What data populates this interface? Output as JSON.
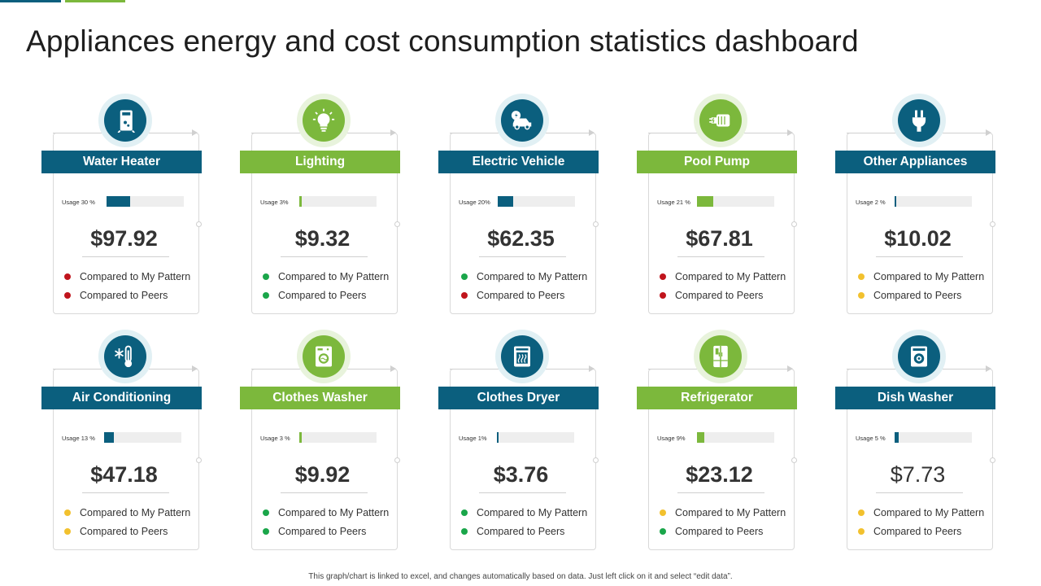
{
  "title": "Appliances energy and cost consumption statistics dashboard",
  "footer": "This graph/chart is linked to excel, and changes automatically based on data. Just left click on it and select “edit data”.",
  "colors": {
    "blue": "#0b5f7e",
    "green": "#7cb83c",
    "red": "#c0141c",
    "green_dot": "#1aa64a",
    "yellow": "#f2c12e"
  },
  "cards": [
    {
      "label": "Water Heater",
      "theme": "blue",
      "icon": "water-heater-icon",
      "usage_label": "Usage 30 %",
      "usage_pct": 30,
      "cost": "$97.92",
      "pattern_label": "Compared to My Pattern",
      "pattern_color": "#c0141c",
      "peers_label": "Compared to Peers",
      "peers_color": "#c0141c"
    },
    {
      "label": "Lighting",
      "theme": "green",
      "icon": "light-bulb-icon",
      "usage_label": "Usage 3%",
      "usage_pct": 3,
      "cost": "$9.32",
      "pattern_label": "Compared to My Pattern",
      "pattern_color": "#1aa64a",
      "peers_label": "Compared to Peers",
      "peers_color": "#1aa64a"
    },
    {
      "label": "Electric Vehicle",
      "theme": "blue",
      "icon": "electric-vehicle-icon",
      "usage_label": "Usage 20%",
      "usage_pct": 20,
      "cost": "$62.35",
      "pattern_label": "Compared to My Pattern",
      "pattern_color": "#1aa64a",
      "peers_label": "Compared to Peers",
      "peers_color": "#c0141c"
    },
    {
      "label": "Pool Pump",
      "theme": "green",
      "icon": "pool-pump-icon",
      "usage_label": "Usage 21 %",
      "usage_pct": 21,
      "cost": "$67.81",
      "pattern_label": "Compared to My Pattern",
      "pattern_color": "#c0141c",
      "peers_label": "Compared to Peers",
      "peers_color": "#c0141c"
    },
    {
      "label": "Other Appliances",
      "theme": "blue",
      "icon": "plug-icon",
      "usage_label": "Usage 2 %",
      "usage_pct": 2,
      "cost": "$10.02",
      "pattern_label": "Compared to My Pattern",
      "pattern_color": "#f2c12e",
      "peers_label": "Compared to Peers",
      "peers_color": "#f2c12e"
    },
    {
      "label": "Air Conditioning",
      "theme": "blue",
      "icon": "air-conditioning-icon",
      "usage_label": "Usage 13 %",
      "usage_pct": 13,
      "cost": "$47.18",
      "pattern_label": "Compared to My Pattern",
      "pattern_color": "#f2c12e",
      "peers_label": "Compared to Peers",
      "peers_color": "#f2c12e"
    },
    {
      "label": "Clothes Washer",
      "theme": "green",
      "icon": "washing-machine-icon",
      "usage_label": "Usage 3 %",
      "usage_pct": 3,
      "cost": "$9.92",
      "pattern_label": "Compared to My Pattern",
      "pattern_color": "#1aa64a",
      "peers_label": "Compared to Peers",
      "peers_color": "#1aa64a"
    },
    {
      "label": "Clothes Dryer",
      "theme": "blue",
      "icon": "clothes-dryer-icon",
      "usage_label": "Usage 1%",
      "usage_pct": 1,
      "cost": "$3.76",
      "pattern_label": "Compared to My Pattern",
      "pattern_color": "#1aa64a",
      "peers_label": "Compared to Peers",
      "peers_color": "#1aa64a"
    },
    {
      "label": "Refrigerator",
      "theme": "green",
      "icon": "refrigerator-icon",
      "usage_label": "Usage 9%",
      "usage_pct": 9,
      "cost": "$23.12",
      "pattern_label": "Compared to My Pattern",
      "pattern_color": "#f2c12e",
      "peers_label": "Compared to Peers",
      "peers_color": "#1aa64a"
    },
    {
      "label": "Dish Washer",
      "theme": "blue",
      "icon": "dish-washer-icon",
      "usage_label": "Usage 5 %",
      "usage_pct": 5,
      "cost": "$7.73",
      "cost_light": true,
      "pattern_label": "Compared to My Pattern",
      "pattern_color": "#f2c12e",
      "peers_label": "Compared to Peers",
      "peers_color": "#f2c12e"
    }
  ]
}
